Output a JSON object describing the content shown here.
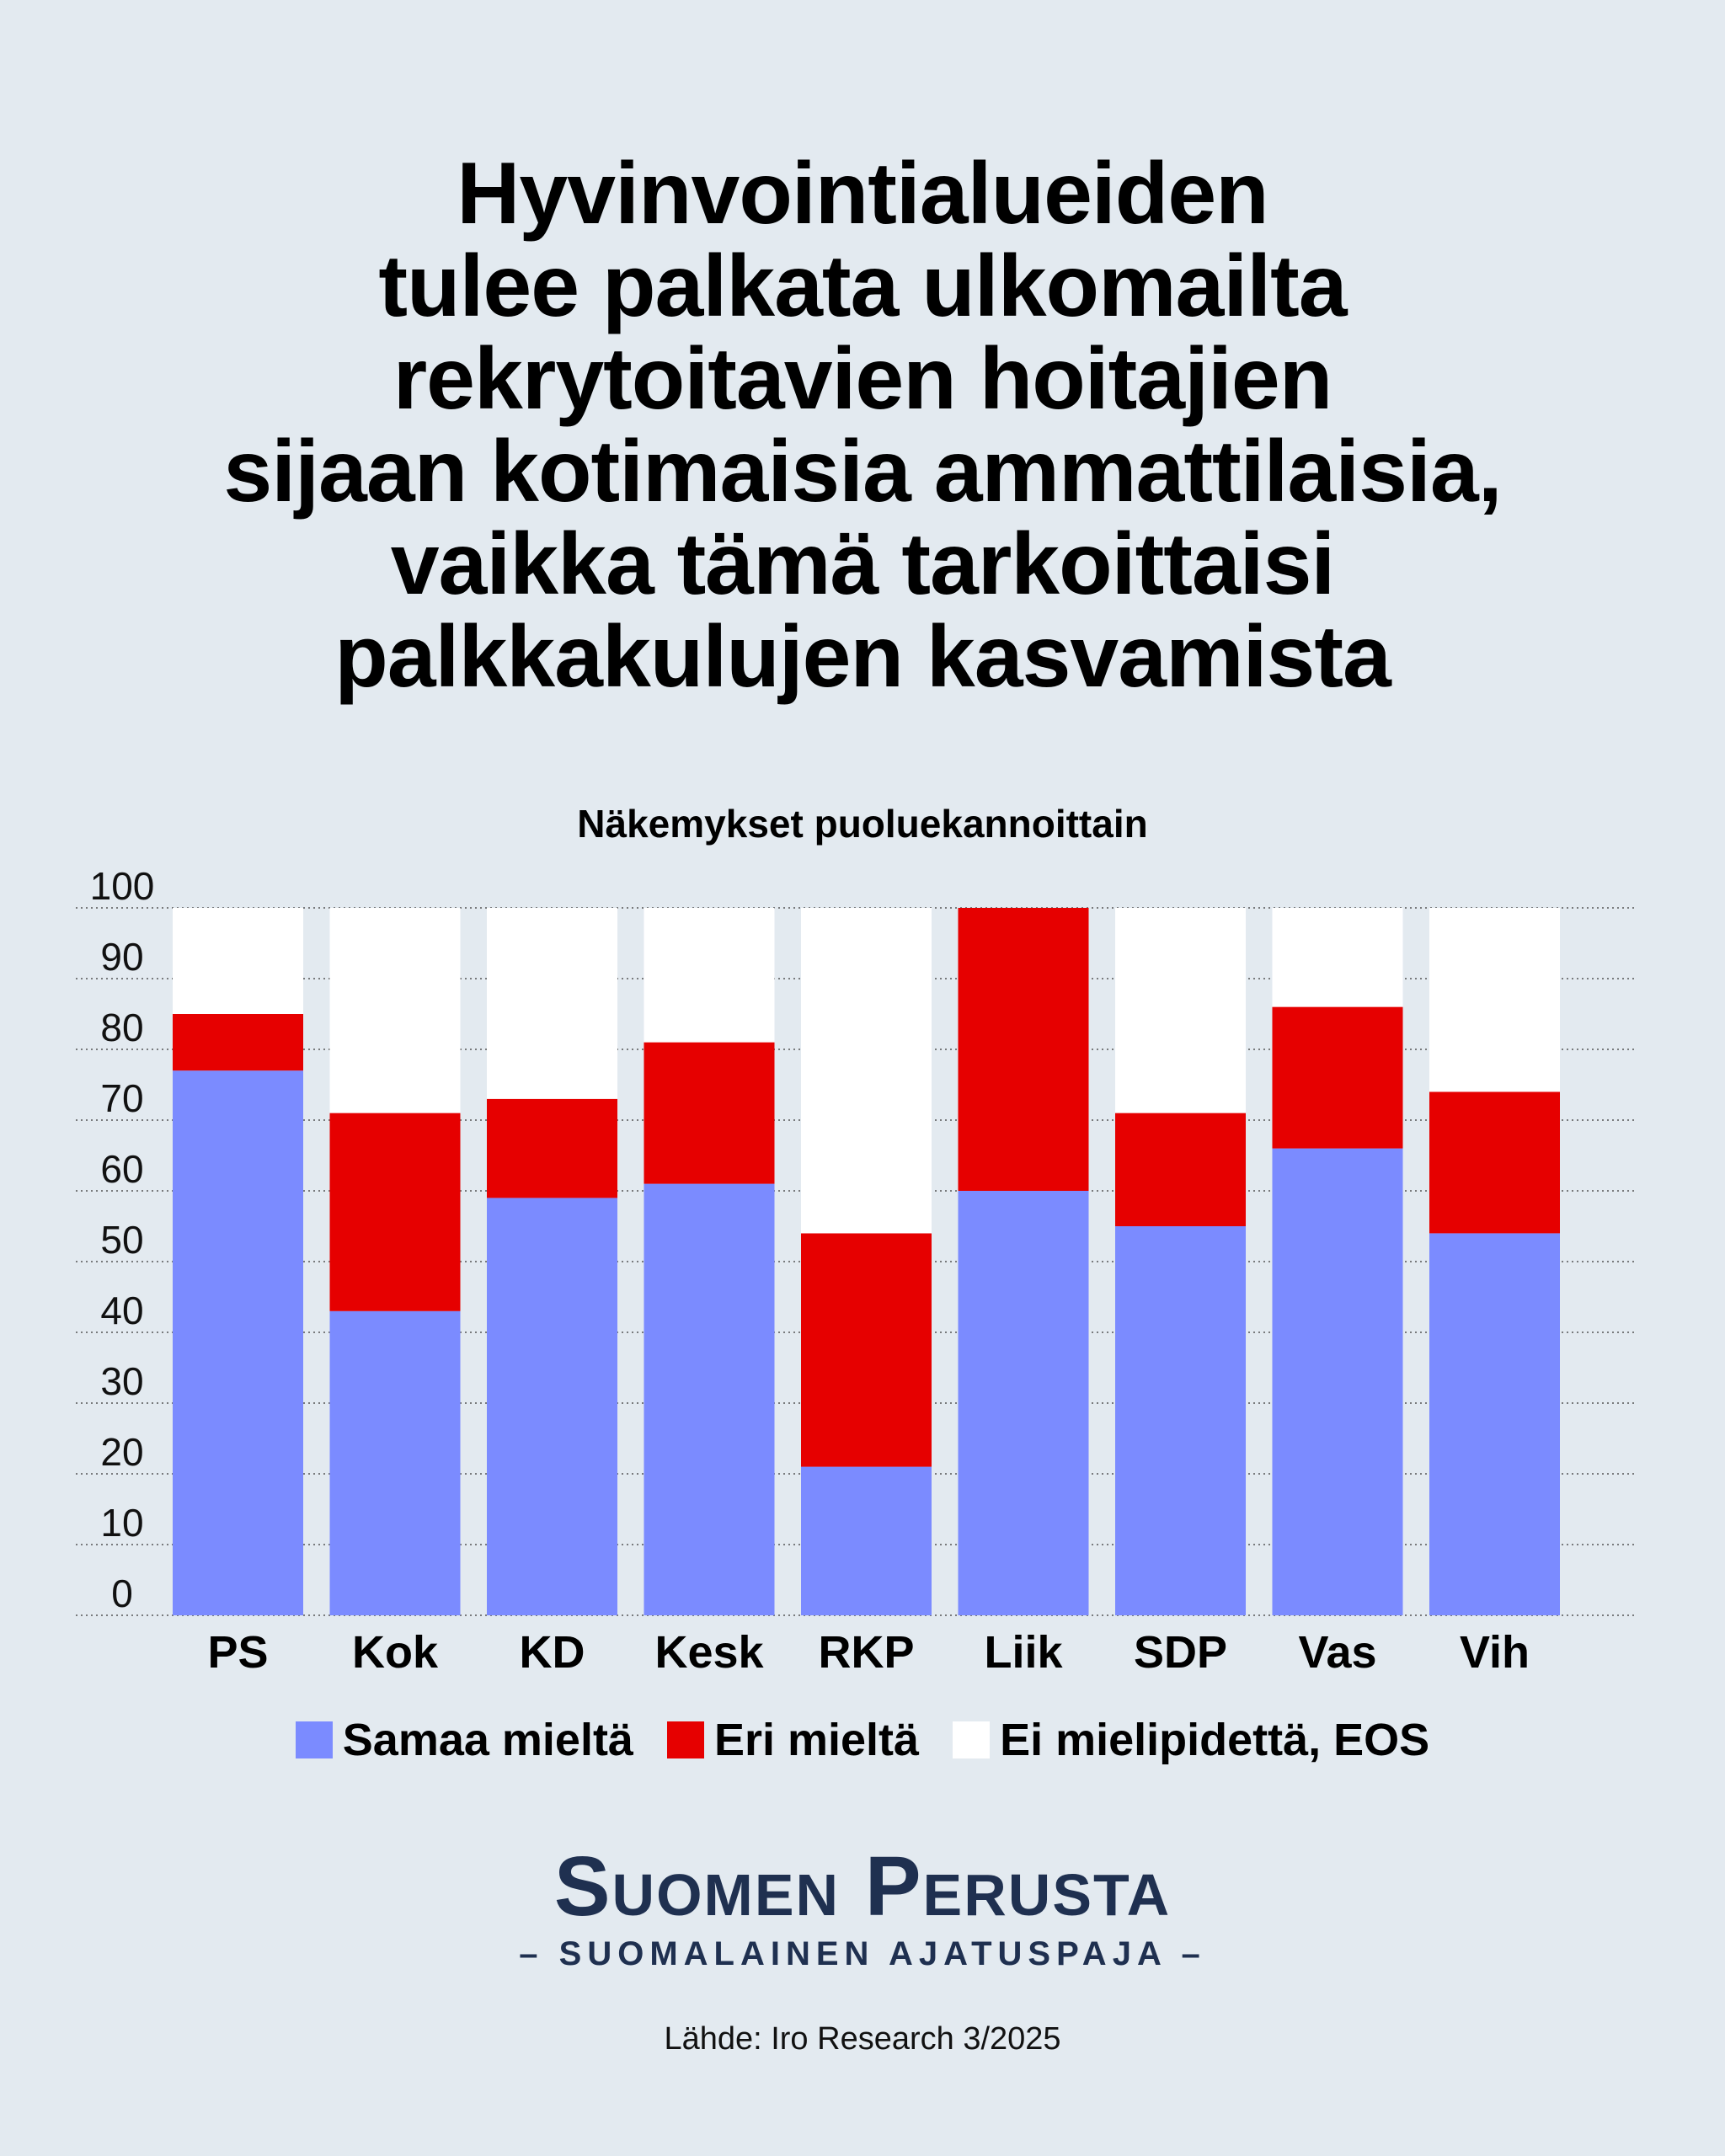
{
  "title_lines": [
    "Hyvinvointialueiden",
    "tulee palkata ulkomailta",
    "rekrytoitavien hoitajien",
    "sijaan kotimaisia ammattilaisia,",
    "vaikka tämä tarkoittaisi",
    "palkkakulujen kasvamista"
  ],
  "subtitle": "Näkemykset puoluekannoittain",
  "brand": {
    "name": "Suomen Perusta",
    "tagline": "– SUOMALAINEN AJATUSPAJA –"
  },
  "source": "Lähde: Iro Research 3/2025",
  "colors": {
    "samaa": "#7b8bff",
    "eri": "#e60000",
    "eos": "#ffffff",
    "background": "#e3eaf0",
    "brand": "#1f3050"
  },
  "chart_data": {
    "type": "bar",
    "stacked": true,
    "categories": [
      "PS",
      "Kok",
      "KD",
      "Kesk",
      "RKP",
      "Liik",
      "SDP",
      "Vas",
      "Vih"
    ],
    "series": [
      {
        "name": "Samaa mieltä",
        "values": [
          77,
          43,
          59,
          61,
          21,
          60,
          55,
          66,
          54
        ]
      },
      {
        "name": "Eri mieltä",
        "values": [
          8,
          28,
          14,
          20,
          33,
          40,
          16,
          20,
          20
        ]
      },
      {
        "name": "Ei mielipidettä, EOS",
        "values": [
          15,
          29,
          27,
          19,
          46,
          0,
          29,
          14,
          26
        ]
      }
    ],
    "ylim": [
      0,
      100
    ],
    "yticks": [
      0,
      10,
      20,
      30,
      40,
      50,
      60,
      70,
      80,
      90,
      100
    ],
    "grid": true,
    "legend_position": "bottom"
  }
}
